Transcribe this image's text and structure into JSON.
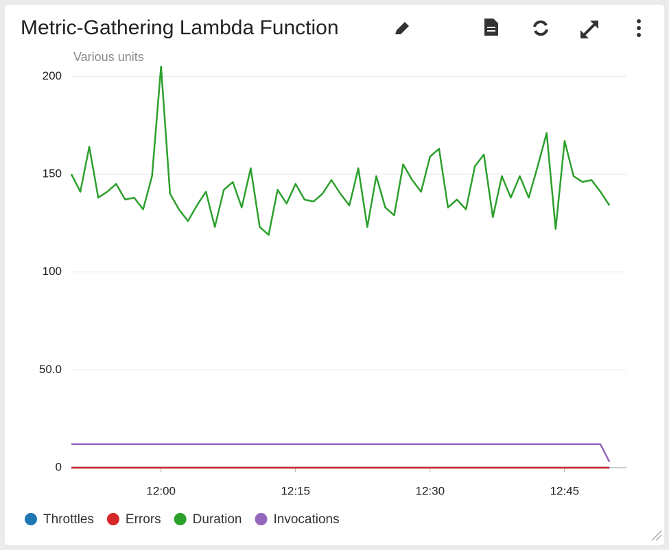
{
  "chart_data": {
    "type": "line",
    "title": "Metric-Gathering Lambda Function",
    "ylabel": "Various units",
    "categories": [
      null,
      null,
      null,
      null,
      null,
      null,
      null,
      null,
      null,
      null,
      "12:00",
      null,
      null,
      null,
      null,
      null,
      null,
      null,
      null,
      null,
      null,
      null,
      null,
      null,
      null,
      "12:15",
      null,
      null,
      null,
      null,
      null,
      null,
      null,
      null,
      null,
      null,
      null,
      null,
      null,
      null,
      "12:30",
      null,
      null,
      null,
      null,
      null,
      null,
      null,
      null,
      null,
      null,
      null,
      null,
      null,
      null,
      "12:45",
      null,
      null,
      null,
      null,
      null
    ],
    "ylim": [
      0,
      205
    ],
    "yticks": [
      0,
      {
        "value": 50,
        "label": "50.0"
      },
      100,
      150,
      200
    ],
    "grid": true,
    "legend": "bottom",
    "series": [
      {
        "name": "Throttles",
        "color": "#1f77b4",
        "values": [
          0,
          0,
          0,
          0,
          0,
          0,
          0,
          0,
          0,
          0,
          0,
          0,
          0,
          0,
          0,
          0,
          0,
          0,
          0,
          0,
          0,
          0,
          0,
          0,
          0,
          0,
          0,
          0,
          0,
          0,
          0,
          0,
          0,
          0,
          0,
          0,
          0,
          0,
          0,
          0,
          0,
          0,
          0,
          0,
          0,
          0,
          0,
          0,
          0,
          0,
          0,
          0,
          0,
          0,
          0,
          0,
          0,
          0,
          0,
          0,
          0
        ]
      },
      {
        "name": "Errors",
        "color": "#d62728",
        "values": [
          0,
          0,
          0,
          0,
          0,
          0,
          0,
          0,
          0,
          0,
          0,
          0,
          0,
          0,
          0,
          0,
          0,
          0,
          0,
          0,
          0,
          0,
          0,
          0,
          0,
          0,
          0,
          0,
          0,
          0,
          0,
          0,
          0,
          0,
          0,
          0,
          0,
          0,
          0,
          0,
          0,
          0,
          0,
          0,
          0,
          0,
          0,
          0,
          0,
          0,
          0,
          0,
          0,
          0,
          0,
          0,
          0,
          0,
          0,
          0,
          0
        ]
      },
      {
        "name": "Duration",
        "color": "#2ca02c",
        "values": [
          150,
          141,
          164,
          138,
          141,
          145,
          137,
          138,
          132,
          149,
          205,
          140,
          132,
          126,
          134,
          141,
          123,
          142,
          146,
          133,
          153,
          123,
          119,
          142,
          135,
          145,
          137,
          136,
          140,
          147,
          140,
          134,
          153,
          123,
          149,
          133,
          129,
          155,
          147,
          141,
          159,
          163,
          133,
          137,
          132,
          154,
          160,
          128,
          149,
          138,
          149,
          138,
          154,
          171,
          122,
          167,
          149,
          146,
          147,
          141,
          134
        ]
      },
      {
        "name": "Invocations",
        "color": "#9467bd",
        "values": [
          12,
          12,
          12,
          12,
          12,
          12,
          12,
          12,
          12,
          12,
          12,
          12,
          12,
          12,
          12,
          12,
          12,
          12,
          12,
          12,
          12,
          12,
          12,
          12,
          12,
          12,
          12,
          12,
          12,
          12,
          12,
          12,
          12,
          12,
          12,
          12,
          12,
          12,
          12,
          12,
          12,
          12,
          12,
          12,
          12,
          12,
          12,
          12,
          12,
          12,
          12,
          12,
          12,
          12,
          12,
          12,
          12,
          12,
          12,
          12,
          3
        ]
      }
    ]
  }
}
